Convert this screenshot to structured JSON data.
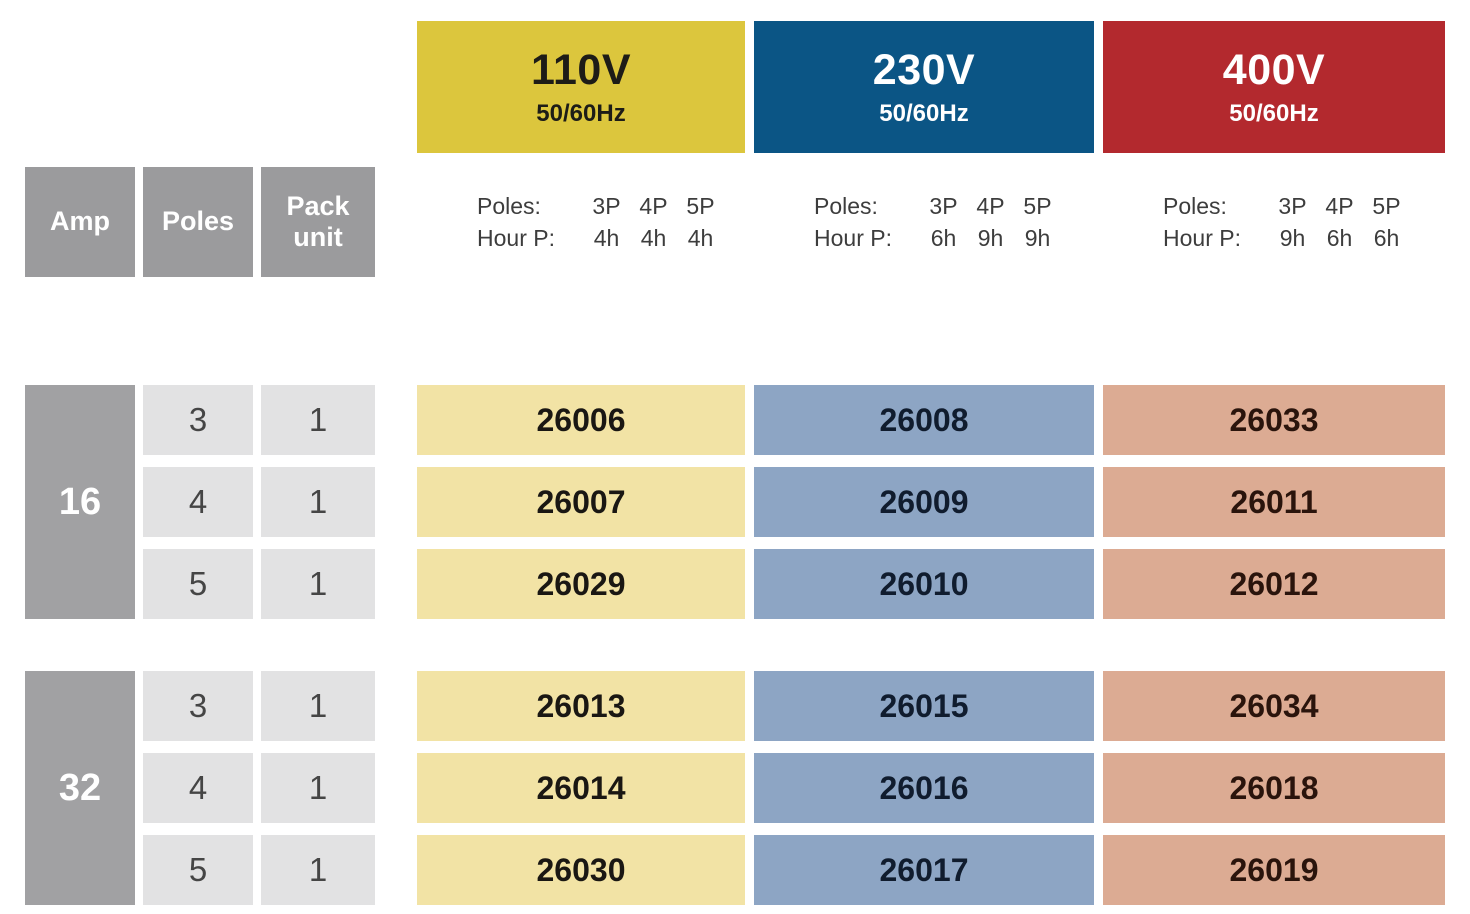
{
  "table_headers": {
    "amp": "Amp",
    "poles": "Poles",
    "pack_unit": "Pack unit"
  },
  "voltages": [
    {
      "title": "110V",
      "freq": "50/60Hz",
      "header_bg": "#dcc63d",
      "header_text": "#1d1c17",
      "cell_bg": "#f2e3a5",
      "poles_label": "Poles:",
      "hours_label": "Hour P:",
      "poles": [
        "3P",
        "4P",
        "5P"
      ],
      "hours": [
        "4h",
        "4h",
        "4h"
      ]
    },
    {
      "title": "230V",
      "freq": "50/60Hz",
      "header_bg": "#0b5585",
      "header_text": "#ffffff",
      "cell_bg": "#8da5c4",
      "poles_label": "Poles:",
      "hours_label": "Hour P:",
      "poles": [
        "3P",
        "4P",
        "5P"
      ],
      "hours": [
        "6h",
        "9h",
        "9h"
      ]
    },
    {
      "title": "400V",
      "freq": "50/60Hz",
      "header_bg": "#b3292e",
      "header_text": "#ffffff",
      "cell_bg": "#dcab93",
      "poles_label": "Poles:",
      "hours_label": "Hour P:",
      "poles": [
        "3P",
        "4P",
        "5P"
      ],
      "hours": [
        "9h",
        "6h",
        "6h"
      ]
    }
  ],
  "blocks": [
    {
      "amp": "16",
      "rows": [
        {
          "poles": "3",
          "pack_unit": "1",
          "codes": [
            "26006",
            "26008",
            "26033"
          ]
        },
        {
          "poles": "4",
          "pack_unit": "1",
          "codes": [
            "26007",
            "26009",
            "26011"
          ]
        },
        {
          "poles": "5",
          "pack_unit": "1",
          "codes": [
            "26029",
            "26010",
            "26012"
          ]
        }
      ]
    },
    {
      "amp": "32",
      "rows": [
        {
          "poles": "3",
          "pack_unit": "1",
          "codes": [
            "26013",
            "26015",
            "26034"
          ]
        },
        {
          "poles": "4",
          "pack_unit": "1",
          "codes": [
            "26014",
            "26016",
            "26018"
          ]
        },
        {
          "poles": "5",
          "pack_unit": "1",
          "codes": [
            "26030",
            "26017",
            "26019"
          ]
        }
      ]
    }
  ],
  "colors": {
    "column_header_gray": "#9b9b9d",
    "amp_group_gray": "#a1a1a3",
    "light_gray_cell": "#e2e2e3",
    "background": "#ffffff"
  }
}
